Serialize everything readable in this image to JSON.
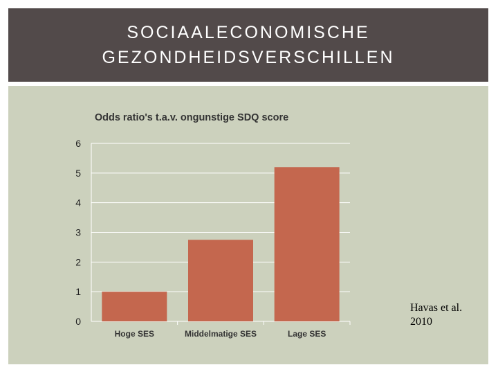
{
  "slide": {
    "title": "SOCIAALECONOMISCHE\nGEZONDHEIDSVERSCHILLEN",
    "citation": "Havas et al.\n2010"
  },
  "colors": {
    "title_bar": "#524a4a",
    "panel": "#ccd1bd",
    "bar": "#c4674e",
    "grid": "#ffffff"
  },
  "chart_data": {
    "type": "bar",
    "title": "Odds ratio's t.a.v. ongunstige SDQ score",
    "categories": [
      "Hoge SES",
      "Middelmatige SES",
      "Lage SES"
    ],
    "values": [
      1.0,
      2.75,
      5.2
    ],
    "xlabel": "",
    "ylabel": "",
    "ylim": [
      0,
      6
    ],
    "yticks": [
      "0",
      "1",
      "2",
      "3",
      "4",
      "5",
      "6"
    ],
    "grid": true,
    "legend": "none"
  }
}
